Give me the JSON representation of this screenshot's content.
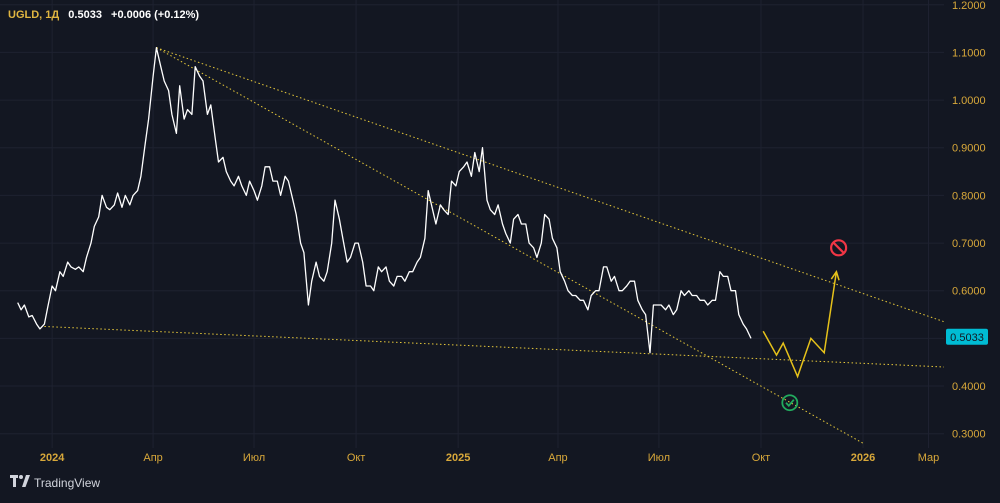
{
  "header": {
    "symbol": "UGLD, 1Д",
    "price": "0.5033",
    "change": "+0.0006 (+0.12%)"
  },
  "brand": {
    "name": "TradingView",
    "logo_icon": "tradingview-logo-icon"
  },
  "colors": {
    "background": "#131722",
    "price_line": "#ffffff",
    "axis_text": "#d8a83a",
    "trendline": "#e6c83a",
    "forecast": "#e6c21a",
    "price_label_bg": "#00bcd4",
    "stop_icon": "#f23645",
    "check_icon": "#22ab5e",
    "grid": "#1e2230"
  },
  "chart_data": {
    "type": "line",
    "y_scale": "linear",
    "ylim": [
      0.27,
      1.21
    ],
    "yticks": [
      "0.3000",
      "0.4000",
      "0.5000",
      "0.6000",
      "0.7000",
      "0.8000",
      "0.9000",
      "1.0000",
      "1.1000",
      "1.2000"
    ],
    "x_range": [
      "2023-11-15",
      "2026-03-15"
    ],
    "xticks": [
      {
        "date": "2024-01-01",
        "label": "2024"
      },
      {
        "date": "2024-04-01",
        "label": "Апр"
      },
      {
        "date": "2024-07-01",
        "label": "Июл"
      },
      {
        "date": "2024-10-01",
        "label": "Окт"
      },
      {
        "date": "2025-01-01",
        "label": "2025"
      },
      {
        "date": "2025-04-01",
        "label": "Апр"
      },
      {
        "date": "2025-07-01",
        "label": "Июл"
      },
      {
        "date": "2025-10-01",
        "label": "Окт"
      },
      {
        "date": "2026-01-01",
        "label": "2026"
      },
      {
        "date": "2026-03-01",
        "label": "Мар"
      }
    ],
    "last_price_label": "0.5033",
    "last_price": 0.5033,
    "series": [
      {
        "points": [
          [
            "2023-12-01",
            0.575
          ],
          [
            "2023-12-04",
            0.56
          ],
          [
            "2023-12-07",
            0.57
          ],
          [
            "2023-12-11",
            0.545
          ],
          [
            "2023-12-14",
            0.548
          ],
          [
            "2023-12-18",
            0.53
          ],
          [
            "2023-12-21",
            0.52
          ],
          [
            "2023-12-25",
            0.53
          ],
          [
            "2023-12-28",
            0.565
          ],
          [
            "2024-01-01",
            0.61
          ],
          [
            "2024-01-04",
            0.6
          ],
          [
            "2024-01-08",
            0.64
          ],
          [
            "2024-01-11",
            0.63
          ],
          [
            "2024-01-15",
            0.66
          ],
          [
            "2024-01-18",
            0.65
          ],
          [
            "2024-01-22",
            0.645
          ],
          [
            "2024-01-25",
            0.65
          ],
          [
            "2024-01-29",
            0.64
          ],
          [
            "2024-02-01",
            0.67
          ],
          [
            "2024-02-05",
            0.7
          ],
          [
            "2024-02-08",
            0.735
          ],
          [
            "2024-02-12",
            0.755
          ],
          [
            "2024-02-15",
            0.8
          ],
          [
            "2024-02-19",
            0.775
          ],
          [
            "2024-02-22",
            0.77
          ],
          [
            "2024-02-26",
            0.78
          ],
          [
            "2024-02-29",
            0.805
          ],
          [
            "2024-03-04",
            0.775
          ],
          [
            "2024-03-07",
            0.8
          ],
          [
            "2024-03-11",
            0.78
          ],
          [
            "2024-03-14",
            0.8
          ],
          [
            "2024-03-18",
            0.81
          ],
          [
            "2024-03-21",
            0.84
          ],
          [
            "2024-03-25",
            0.91
          ],
          [
            "2024-03-28",
            0.96
          ],
          [
            "2024-04-01",
            1.05
          ],
          [
            "2024-04-04",
            1.11
          ],
          [
            "2024-04-08",
            1.07
          ],
          [
            "2024-04-11",
            1.04
          ],
          [
            "2024-04-15",
            1.02
          ],
          [
            "2024-04-18",
            0.97
          ],
          [
            "2024-04-22",
            0.93
          ],
          [
            "2024-04-25",
            1.03
          ],
          [
            "2024-04-29",
            0.96
          ],
          [
            "2024-05-02",
            0.98
          ],
          [
            "2024-05-06",
            0.97
          ],
          [
            "2024-05-09",
            1.07
          ],
          [
            "2024-05-13",
            1.05
          ],
          [
            "2024-05-16",
            1.04
          ],
          [
            "2024-05-20",
            0.97
          ],
          [
            "2024-05-23",
            0.99
          ],
          [
            "2024-05-27",
            0.92
          ],
          [
            "2024-05-30",
            0.87
          ],
          [
            "2024-06-03",
            0.88
          ],
          [
            "2024-06-06",
            0.85
          ],
          [
            "2024-06-10",
            0.83
          ],
          [
            "2024-06-13",
            0.82
          ],
          [
            "2024-06-17",
            0.84
          ],
          [
            "2024-06-20",
            0.82
          ],
          [
            "2024-06-24",
            0.8
          ],
          [
            "2024-06-27",
            0.83
          ],
          [
            "2024-07-01",
            0.81
          ],
          [
            "2024-07-04",
            0.79
          ],
          [
            "2024-07-08",
            0.82
          ],
          [
            "2024-07-11",
            0.86
          ],
          [
            "2024-07-15",
            0.86
          ],
          [
            "2024-07-18",
            0.83
          ],
          [
            "2024-07-22",
            0.83
          ],
          [
            "2024-07-25",
            0.8
          ],
          [
            "2024-07-29",
            0.84
          ],
          [
            "2024-08-01",
            0.83
          ],
          [
            "2024-08-05",
            0.79
          ],
          [
            "2024-08-08",
            0.76
          ],
          [
            "2024-08-12",
            0.7
          ],
          [
            "2024-08-15",
            0.68
          ],
          [
            "2024-08-19",
            0.57
          ],
          [
            "2024-08-22",
            0.62
          ],
          [
            "2024-08-26",
            0.66
          ],
          [
            "2024-08-29",
            0.63
          ],
          [
            "2024-09-02",
            0.62
          ],
          [
            "2024-09-05",
            0.64
          ],
          [
            "2024-09-09",
            0.7
          ],
          [
            "2024-09-12",
            0.79
          ],
          [
            "2024-09-16",
            0.75
          ],
          [
            "2024-09-19",
            0.71
          ],
          [
            "2024-09-23",
            0.66
          ],
          [
            "2024-09-26",
            0.67
          ],
          [
            "2024-09-30",
            0.7
          ],
          [
            "2024-10-03",
            0.7
          ],
          [
            "2024-10-07",
            0.66
          ],
          [
            "2024-10-10",
            0.61
          ],
          [
            "2024-10-14",
            0.61
          ],
          [
            "2024-10-17",
            0.6
          ],
          [
            "2024-10-21",
            0.65
          ],
          [
            "2024-10-24",
            0.64
          ],
          [
            "2024-10-28",
            0.65
          ],
          [
            "2024-10-31",
            0.62
          ],
          [
            "2024-11-04",
            0.61
          ],
          [
            "2024-11-07",
            0.63
          ],
          [
            "2024-11-11",
            0.63
          ],
          [
            "2024-11-14",
            0.62
          ],
          [
            "2024-11-18",
            0.64
          ],
          [
            "2024-11-21",
            0.64
          ],
          [
            "2024-11-25",
            0.66
          ],
          [
            "2024-11-28",
            0.67
          ],
          [
            "2024-12-02",
            0.71
          ],
          [
            "2024-12-05",
            0.81
          ],
          [
            "2024-12-09",
            0.77
          ],
          [
            "2024-12-12",
            0.74
          ],
          [
            "2024-12-16",
            0.78
          ],
          [
            "2024-12-19",
            0.77
          ],
          [
            "2024-12-23",
            0.76
          ],
          [
            "2024-12-26",
            0.83
          ],
          [
            "2024-12-30",
            0.82
          ],
          [
            "2025-01-02",
            0.85
          ],
          [
            "2025-01-06",
            0.86
          ],
          [
            "2025-01-09",
            0.87
          ],
          [
            "2025-01-13",
            0.84
          ],
          [
            "2025-01-16",
            0.89
          ],
          [
            "2025-01-20",
            0.85
          ],
          [
            "2025-01-23",
            0.9
          ],
          [
            "2025-01-27",
            0.79
          ],
          [
            "2025-01-30",
            0.77
          ],
          [
            "2025-02-03",
            0.76
          ],
          [
            "2025-02-06",
            0.78
          ],
          [
            "2025-02-10",
            0.74
          ],
          [
            "2025-02-13",
            0.72
          ],
          [
            "2025-02-17",
            0.7
          ],
          [
            "2025-02-20",
            0.75
          ],
          [
            "2025-02-24",
            0.76
          ],
          [
            "2025-02-27",
            0.74
          ],
          [
            "2025-03-03",
            0.74
          ],
          [
            "2025-03-06",
            0.7
          ],
          [
            "2025-03-10",
            0.69
          ],
          [
            "2025-03-13",
            0.67
          ],
          [
            "2025-03-17",
            0.7
          ],
          [
            "2025-03-20",
            0.76
          ],
          [
            "2025-03-24",
            0.75
          ],
          [
            "2025-03-27",
            0.71
          ],
          [
            "2025-03-31",
            0.69
          ],
          [
            "2025-04-03",
            0.64
          ],
          [
            "2025-04-07",
            0.62
          ],
          [
            "2025-04-10",
            0.6
          ],
          [
            "2025-04-14",
            0.59
          ],
          [
            "2025-04-17",
            0.59
          ],
          [
            "2025-04-21",
            0.58
          ],
          [
            "2025-04-24",
            0.58
          ],
          [
            "2025-04-28",
            0.56
          ],
          [
            "2025-05-01",
            0.59
          ],
          [
            "2025-05-05",
            0.6
          ],
          [
            "2025-05-08",
            0.6
          ],
          [
            "2025-05-12",
            0.65
          ],
          [
            "2025-05-15",
            0.65
          ],
          [
            "2025-05-19",
            0.62
          ],
          [
            "2025-05-22",
            0.63
          ],
          [
            "2025-05-26",
            0.6
          ],
          [
            "2025-05-29",
            0.6
          ],
          [
            "2025-06-02",
            0.61
          ],
          [
            "2025-06-05",
            0.62
          ],
          [
            "2025-06-09",
            0.62
          ],
          [
            "2025-06-12",
            0.58
          ],
          [
            "2025-06-16",
            0.56
          ],
          [
            "2025-06-19",
            0.55
          ],
          [
            "2025-06-23",
            0.47
          ],
          [
            "2025-06-26",
            0.57
          ],
          [
            "2025-06-30",
            0.57
          ],
          [
            "2025-07-03",
            0.57
          ],
          [
            "2025-07-07",
            0.56
          ],
          [
            "2025-07-10",
            0.57
          ],
          [
            "2025-07-14",
            0.55
          ],
          [
            "2025-07-17",
            0.56
          ],
          [
            "2025-07-21",
            0.6
          ],
          [
            "2025-07-24",
            0.59
          ],
          [
            "2025-07-28",
            0.6
          ],
          [
            "2025-07-31",
            0.59
          ],
          [
            "2025-08-04",
            0.59
          ],
          [
            "2025-08-07",
            0.58
          ],
          [
            "2025-08-11",
            0.58
          ],
          [
            "2025-08-14",
            0.57
          ],
          [
            "2025-08-18",
            0.58
          ],
          [
            "2025-08-21",
            0.58
          ],
          [
            "2025-08-25",
            0.64
          ],
          [
            "2025-08-28",
            0.63
          ],
          [
            "2025-09-01",
            0.63
          ],
          [
            "2025-09-04",
            0.6
          ],
          [
            "2025-09-08",
            0.6
          ],
          [
            "2025-09-11",
            0.55
          ],
          [
            "2025-09-15",
            0.53
          ],
          [
            "2025-09-18",
            0.52
          ],
          [
            "2025-09-22",
            0.5
          ]
        ]
      }
    ],
    "trendlines": [
      {
        "from": [
          "2024-04-04",
          1.11
        ],
        "to": [
          "2026-03-15",
          0.535
        ]
      },
      {
        "from": [
          "2024-04-04",
          1.11
        ],
        "to": [
          "2026-01-01",
          0.28
        ]
      },
      {
        "from": [
          "2023-12-25",
          0.525
        ],
        "to": [
          "2026-03-15",
          0.44
        ]
      }
    ],
    "forecast": [
      [
        "2025-10-03",
        0.515
      ],
      [
        "2025-10-15",
        0.465
      ],
      [
        "2025-10-21",
        0.49
      ],
      [
        "2025-11-03",
        0.42
      ],
      [
        "2025-11-15",
        0.5
      ],
      [
        "2025-11-27",
        0.47
      ],
      [
        "2025-12-08",
        0.64
      ]
    ],
    "markers": [
      {
        "name": "stop-icon",
        "at": [
          "2025-12-10",
          0.69
        ]
      },
      {
        "name": "check-icon",
        "at": [
          "2025-10-27",
          0.365
        ]
      }
    ]
  }
}
